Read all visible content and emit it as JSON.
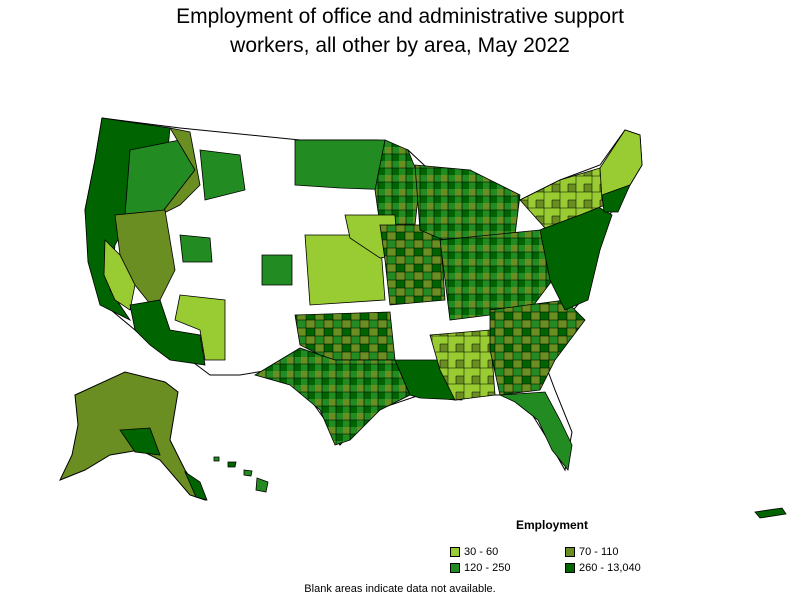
{
  "title_line1": "Employment of office and administrative support",
  "title_line2": "workers, all other by area, May 2022",
  "legend": {
    "title": "Employment",
    "items": [
      {
        "label": "30 - 60",
        "color": "#99cc33"
      },
      {
        "label": "70 - 110",
        "color": "#6b8e23"
      },
      {
        "label": "120 - 250",
        "color": "#228b22"
      },
      {
        "label": "260 - 13,040",
        "color": "#006400"
      }
    ]
  },
  "footnote": "Blank areas indicate data not available.",
  "colors": {
    "no_data": "#ffffff",
    "border": "#000000"
  }
}
